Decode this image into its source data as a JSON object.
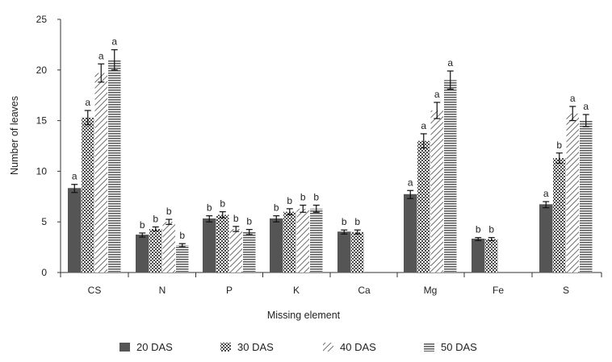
{
  "chart_data": {
    "type": "bar",
    "title": "",
    "xlabel": "Missing element",
    "ylabel": "Number of leaves",
    "ylim": [
      0,
      25
    ],
    "yticks": [
      0,
      5,
      10,
      15,
      20,
      25
    ],
    "categories": [
      "CS",
      "N",
      "P",
      "K",
      "Ca",
      "Mg",
      "Fe",
      "S"
    ],
    "series": [
      {
        "name": "20 DAS",
        "pattern": "solid",
        "values": [
          8.3,
          3.7,
          5.3,
          5.3,
          4.0,
          7.7,
          3.3,
          6.7
        ],
        "errors": [
          0.4,
          0.2,
          0.3,
          0.3,
          0.2,
          0.4,
          0.15,
          0.3
        ],
        "letters": [
          "a",
          "b",
          "b",
          "b",
          "b",
          "a",
          "b",
          "a"
        ]
      },
      {
        "name": "30 DAS",
        "pattern": "cross",
        "values": [
          15.3,
          4.3,
          5.7,
          6.0,
          4.0,
          13.0,
          3.3,
          11.3
        ],
        "errors": [
          0.7,
          0.2,
          0.3,
          0.3,
          0.2,
          0.7,
          0.15,
          0.5
        ],
        "letters": [
          "a",
          "b",
          "b",
          "b",
          "b",
          "a",
          "b",
          "b"
        ]
      },
      {
        "name": "40 DAS",
        "pattern": "diagonal",
        "values": [
          19.7,
          5.0,
          4.3,
          6.3,
          null,
          16.0,
          null,
          15.7
        ],
        "errors": [
          0.9,
          0.25,
          0.25,
          0.35,
          null,
          0.8,
          null,
          0.7
        ],
        "letters": [
          "a",
          "b",
          "b",
          "b",
          null,
          "a",
          null,
          "a"
        ]
      },
      {
        "name": "50 DAS",
        "pattern": "horizontal",
        "values": [
          21.0,
          2.7,
          4.0,
          6.3,
          null,
          19.0,
          null,
          15.0
        ],
        "errors": [
          1.0,
          0.15,
          0.25,
          0.35,
          null,
          0.9,
          null,
          0.6
        ],
        "letters": [
          "a",
          "b",
          "b",
          "b",
          null,
          "a",
          null,
          "a"
        ]
      }
    ],
    "legend_position": "bottom",
    "grid": false
  },
  "colors": {
    "bar_dark": "#555555",
    "pattern": "#4a4a4a",
    "axis": "#333333",
    "text": "#222222"
  }
}
